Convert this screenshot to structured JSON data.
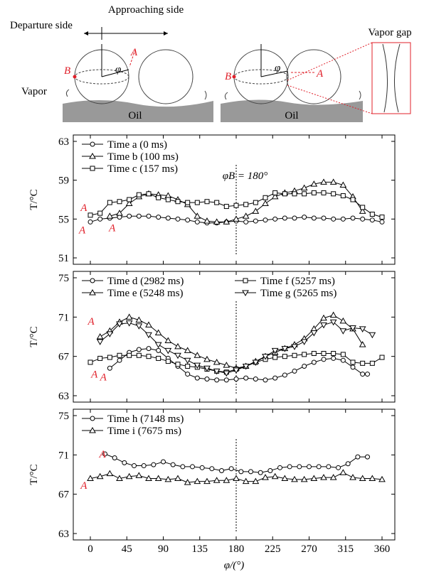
{
  "diagram": {
    "departure": "Departure side",
    "approaching": "Approaching side",
    "point_a": "A",
    "point_b": "B",
    "angle": "φ",
    "vapor": "Vapor",
    "oil": "Oil",
    "point_a_2": "A",
    "point_b_2": "B",
    "angle_2": "φ",
    "oil_2": "Oil",
    "vapor_gap": "Vapor gap"
  },
  "chart_data": [
    {
      "type": "line",
      "ylabel": "T/°C",
      "xlim": [
        0,
        360
      ],
      "xticks": [
        0,
        45,
        90,
        135,
        180,
        225,
        270,
        315,
        360
      ],
      "ylim": [
        51,
        63
      ],
      "yticks": [
        51,
        55,
        59,
        63
      ],
      "vline": 180,
      "annotations": [
        {
          "text": "φB = 180°",
          "color": "#000000"
        },
        {
          "text": "A",
          "color": "#e0202a"
        },
        {
          "text": "A",
          "color": "#e0202a"
        },
        {
          "text": "A",
          "color": "#e0202a"
        }
      ],
      "series": [
        {
          "name": "Time a (0 ms)",
          "marker": "circle",
          "color": "#000000",
          "x": [
            0,
            12,
            24,
            36,
            48,
            60,
            72,
            84,
            96,
            108,
            120,
            132,
            144,
            156,
            168,
            180,
            192,
            204,
            216,
            228,
            240,
            252,
            264,
            276,
            288,
            300,
            312,
            324,
            336,
            348,
            360
          ],
          "values": [
            54.7,
            55.0,
            55.1,
            55.2,
            55.3,
            55.3,
            55.3,
            55.2,
            55.1,
            55.0,
            54.9,
            54.7,
            54.6,
            54.6,
            54.7,
            54.8,
            54.7,
            54.8,
            54.9,
            55.0,
            55.1,
            55.1,
            55.2,
            55.1,
            55.1,
            55.0,
            55.0,
            55.1,
            55.0,
            54.9,
            54.7
          ]
        },
        {
          "name": "Time b (100 ms)",
          "marker": "triangle",
          "color": "#000000",
          "x": [
            24,
            36,
            48,
            60,
            72,
            84,
            96,
            108,
            120,
            132,
            144,
            156,
            168,
            180,
            192,
            204,
            216,
            228,
            240,
            252,
            264,
            276,
            288,
            300,
            312,
            324,
            336
          ],
          "values": [
            55.3,
            55.6,
            56.6,
            57.3,
            57.6,
            57.5,
            57.4,
            57.0,
            56.5,
            55.3,
            54.8,
            54.7,
            54.7,
            55.0,
            55.3,
            55.8,
            56.6,
            57.3,
            57.7,
            57.9,
            58.2,
            58.6,
            58.8,
            58.8,
            58.5,
            57.3,
            55.8
          ]
        },
        {
          "name": "Time c (157 ms)",
          "marker": "square",
          "color": "#000000",
          "x": [
            0,
            12,
            24,
            36,
            48,
            60,
            72,
            84,
            96,
            108,
            120,
            132,
            144,
            156,
            168,
            180,
            192,
            204,
            216,
            228,
            240,
            252,
            264,
            276,
            288,
            300,
            312,
            324,
            336,
            348,
            360
          ],
          "values": [
            55.4,
            55.6,
            56.7,
            56.8,
            57.0,
            57.5,
            57.6,
            57.2,
            57.0,
            56.8,
            56.7,
            56.7,
            56.8,
            56.7,
            56.3,
            56.4,
            56.5,
            56.7,
            57.2,
            57.7,
            57.6,
            57.6,
            57.6,
            57.7,
            57.7,
            57.6,
            57.4,
            57.0,
            56.2,
            55.5,
            55.2
          ]
        }
      ]
    },
    {
      "type": "line",
      "ylabel": "T/°C",
      "xlim": [
        0,
        360
      ],
      "xticks": [
        0,
        45,
        90,
        135,
        180,
        225,
        270,
        315,
        360
      ],
      "ylim": [
        63,
        75
      ],
      "yticks": [
        63,
        67,
        71,
        75
      ],
      "vline": 180,
      "annotations": [
        {
          "text": "A",
          "color": "#e0202a"
        },
        {
          "text": "A",
          "color": "#e0202a"
        },
        {
          "text": "A",
          "color": "#e0202a"
        }
      ],
      "series": [
        {
          "name": "Time d (2982 ms)",
          "marker": "circle",
          "color": "#000000",
          "x": [
            24,
            36,
            48,
            60,
            72,
            84,
            96,
            108,
            120,
            132,
            144,
            156,
            168,
            180,
            192,
            204,
            216,
            228,
            240,
            252,
            264,
            276,
            288,
            300,
            312,
            324,
            336,
            342
          ],
          "values": [
            65.8,
            66.6,
            67.4,
            67.7,
            67.8,
            67.6,
            66.8,
            66.0,
            65.2,
            64.8,
            64.7,
            64.6,
            64.6,
            64.7,
            64.8,
            64.7,
            64.6,
            64.8,
            65.1,
            65.5,
            66.0,
            66.4,
            66.7,
            66.8,
            66.6,
            65.9,
            65.2,
            65.2
          ]
        },
        {
          "name": "Time e (5248 ms)",
          "marker": "triangle",
          "color": "#000000",
          "x": [
            12,
            24,
            36,
            48,
            60,
            72,
            84,
            96,
            108,
            120,
            132,
            144,
            156,
            168,
            180,
            192,
            204,
            216,
            228,
            240,
            252,
            264,
            276,
            288,
            300,
            312,
            324,
            336
          ],
          "values": [
            69.0,
            69.6,
            70.5,
            71.0,
            70.7,
            70.2,
            69.4,
            68.6,
            68.0,
            67.6,
            67.1,
            66.7,
            66.4,
            66.1,
            65.8,
            66.0,
            66.5,
            67.0,
            67.4,
            67.8,
            68.2,
            68.8,
            69.8,
            70.9,
            71.2,
            70.6,
            69.8,
            68.2
          ]
        },
        {
          "name": "Time f (5257 ms)",
          "marker": "square",
          "color": "#000000",
          "x": [
            0,
            12,
            24,
            36,
            48,
            60,
            72,
            84,
            96,
            108,
            120,
            132,
            144,
            156,
            168,
            180,
            192,
            204,
            216,
            228,
            240,
            252,
            264,
            276,
            288,
            300,
            312,
            324,
            336,
            348,
            360
          ],
          "values": [
            66.4,
            66.8,
            66.9,
            67.1,
            67.1,
            67.1,
            67.0,
            66.8,
            66.5,
            66.2,
            66.0,
            65.9,
            65.7,
            65.5,
            65.4,
            65.7,
            66.0,
            66.4,
            66.7,
            66.9,
            67.0,
            67.1,
            67.2,
            67.3,
            67.3,
            67.3,
            67.2,
            66.4,
            66.3,
            66.3,
            66.9
          ]
        },
        {
          "name": "Time g (5265 ms)",
          "marker": "triangle-down",
          "color": "#000000",
          "x": [
            12,
            24,
            36,
            48,
            60,
            72,
            84,
            96,
            108,
            120,
            132,
            144,
            156,
            168,
            180,
            192,
            204,
            216,
            228,
            240,
            252,
            264,
            276,
            288,
            300,
            312,
            324,
            336,
            348
          ],
          "values": [
            68.5,
            69.3,
            70.3,
            70.4,
            70.1,
            69.2,
            68.2,
            67.6,
            67.1,
            66.6,
            66.1,
            65.8,
            65.5,
            65.3,
            65.6,
            66.0,
            66.4,
            67.0,
            67.6,
            67.8,
            68.0,
            68.5,
            69.4,
            70.2,
            70.5,
            69.6,
            69.9,
            69.8,
            69.2
          ]
        }
      ]
    },
    {
      "type": "line",
      "ylabel": "T/°C",
      "xlabel": "φ/(°)",
      "xlim": [
        0,
        360
      ],
      "xticks": [
        0,
        45,
        90,
        135,
        180,
        225,
        270,
        315,
        360
      ],
      "ylim": [
        63,
        75
      ],
      "yticks": [
        63,
        67,
        71,
        75
      ],
      "vline": 180,
      "annotations": [
        {
          "text": "A",
          "color": "#e0202a"
        },
        {
          "text": "A",
          "color": "#e0202a"
        }
      ],
      "series": [
        {
          "name": "Time h (7148 ms)",
          "marker": "circle",
          "color": "#000000",
          "x": [
            18,
            30,
            42,
            54,
            66,
            78,
            90,
            102,
            114,
            126,
            138,
            150,
            162,
            174,
            186,
            198,
            210,
            222,
            234,
            246,
            258,
            270,
            282,
            294,
            306,
            318,
            330,
            342
          ],
          "values": [
            71.1,
            70.7,
            70.2,
            69.9,
            69.9,
            70.0,
            70.3,
            70.0,
            69.8,
            69.8,
            69.7,
            69.6,
            69.4,
            69.6,
            69.3,
            69.3,
            69.2,
            69.4,
            69.7,
            69.8,
            69.8,
            69.8,
            69.8,
            69.8,
            69.7,
            70.1,
            70.8,
            70.8
          ]
        },
        {
          "name": "Time i (7675 ms)",
          "marker": "triangle",
          "color": "#000000",
          "x": [
            0,
            12,
            24,
            36,
            48,
            60,
            72,
            84,
            96,
            108,
            120,
            132,
            144,
            156,
            168,
            180,
            192,
            204,
            216,
            228,
            240,
            252,
            264,
            276,
            288,
            300,
            312,
            324,
            336,
            348,
            360
          ],
          "values": [
            68.6,
            68.8,
            69.1,
            68.6,
            68.8,
            68.9,
            68.6,
            68.6,
            68.5,
            68.6,
            68.2,
            68.3,
            68.3,
            68.4,
            68.4,
            68.6,
            68.3,
            68.3,
            68.7,
            68.8,
            68.6,
            68.5,
            68.5,
            68.6,
            68.7,
            68.7,
            69.2,
            68.7,
            68.6,
            68.6,
            68.5
          ]
        }
      ]
    }
  ]
}
